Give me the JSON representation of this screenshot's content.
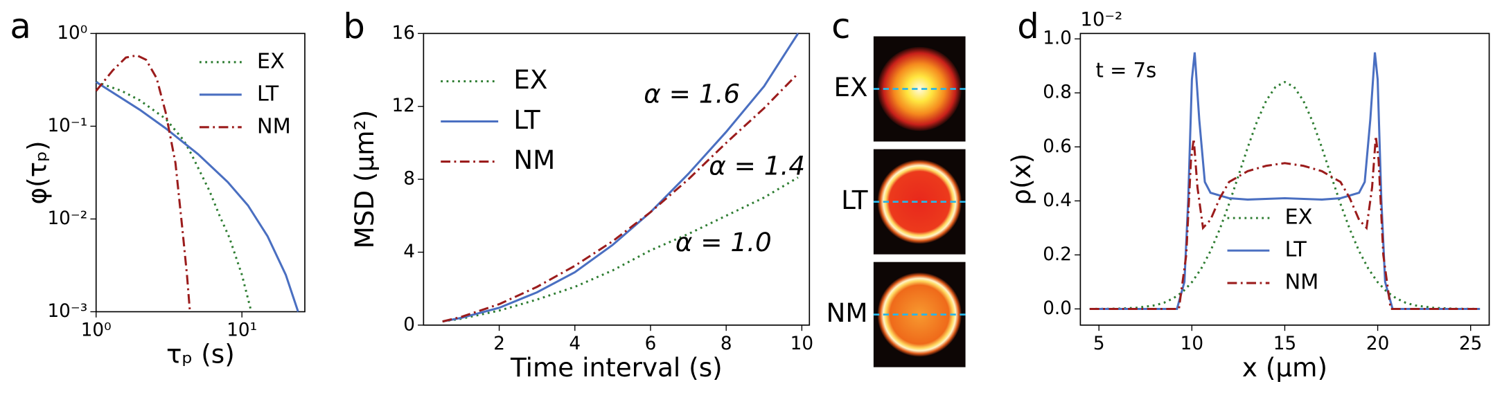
{
  "chart_data": [
    {
      "type": "line",
      "label": "a",
      "xlabel": "τₚ (s)",
      "ylabel": "φ(τₚ)",
      "xlog": true,
      "ylog": true,
      "xlim": [
        1,
        27
      ],
      "ylim": [
        0.001,
        1
      ],
      "xticks": [
        {
          "value": 1,
          "label": "10⁰"
        },
        {
          "value": 10,
          "label": "10¹"
        }
      ],
      "yticks": [
        {
          "value": 0.001,
          "label": "10⁻³"
        },
        {
          "value": 0.01,
          "label": "10⁻²"
        },
        {
          "value": 0.1,
          "label": "10⁻¹"
        },
        {
          "value": 1,
          "label": "10⁰"
        }
      ],
      "legend": "upper right",
      "series": [
        {
          "name": "EX",
          "color": "#2e7d32",
          "dash": "dotted",
          "x": [
            1,
            1.5,
            2,
            3,
            4,
            4.5,
            6,
            7,
            8.2,
            10,
            11.6
          ],
          "values": [
            0.3,
            0.24,
            0.19,
            0.12,
            0.07,
            0.05,
            0.02,
            0.011,
            0.0063,
            0.0025,
            0.001
          ]
        },
        {
          "name": "LT",
          "color": "#4a6fc1",
          "dash": "solid",
          "x": [
            1,
            2,
            3,
            5,
            8,
            11,
            15,
            20,
            24.3
          ],
          "values": [
            0.3,
            0.15,
            0.095,
            0.05,
            0.025,
            0.014,
            0.0065,
            0.0025,
            0.001
          ]
        },
        {
          "name": "NM",
          "color": "#9b1c1c",
          "dash": "dashdot",
          "x": [
            1,
            1.3,
            1.6,
            1.9,
            2.2,
            2.6,
            3,
            3.5,
            3.9,
            4.2,
            4.4
          ],
          "values": [
            0.24,
            0.4,
            0.55,
            0.58,
            0.52,
            0.33,
            0.14,
            0.04,
            0.008,
            0.0025,
            0.001
          ]
        }
      ]
    },
    {
      "type": "line",
      "label": "b",
      "xlabel": "Time interval (s)",
      "ylabel": "MSD (μm²)",
      "xlim": [
        0,
        10.2
      ],
      "ylim": [
        0,
        16
      ],
      "xticks": [
        2,
        4,
        6,
        8,
        10
      ],
      "yticks": [
        0,
        4,
        8,
        12,
        16
      ],
      "legend": "upper left",
      "x": [
        0.5,
        1,
        2,
        3,
        4,
        5,
        6,
        7,
        8,
        9,
        9.9
      ],
      "series": [
        {
          "name": "EX",
          "color": "#2e7d32",
          "dash": "dotted",
          "values": [
            0.2,
            0.35,
            0.8,
            1.4,
            2.1,
            3.0,
            4.1,
            5.0,
            6.0,
            7.0,
            8.1
          ]
        },
        {
          "name": "LT",
          "color": "#4a6fc1",
          "dash": "solid",
          "values": [
            0.2,
            0.4,
            0.95,
            1.8,
            2.9,
            4.4,
            6.2,
            8.3,
            10.6,
            13.1,
            16
          ]
        },
        {
          "name": "NM",
          "color": "#9b1c1c",
          "dash": "dashdot",
          "values": [
            0.2,
            0.45,
            1.15,
            2.1,
            3.25,
            4.6,
            6.2,
            8.0,
            10.0,
            11.9,
            13.8
          ]
        }
      ],
      "annotations": [
        {
          "text": "α = 1.6",
          "color": "#4a6fc1"
        },
        {
          "text": "α = 1.4",
          "color": "#9b1c1c"
        },
        {
          "text": "α = 1.0",
          "color": "#2e7d32"
        }
      ]
    },
    {
      "type": "image",
      "label": "c",
      "categories": [
        "EX",
        "LT",
        "NM"
      ]
    },
    {
      "type": "line",
      "label": "d",
      "xlabel": "x (μm)",
      "ylabel": "ρ(x)",
      "offset_text": "10⁻²",
      "annotation": "t = 7s",
      "xlim": [
        4,
        26
      ],
      "ylim": [
        -0.06,
        1.02
      ],
      "xticks": [
        5,
        10,
        15,
        20,
        25
      ],
      "yticks": [
        {
          "value": 0,
          "label": "0.0"
        },
        0.2,
        0.4,
        0.6,
        0.8,
        {
          "value": 1,
          "label": "1.0"
        }
      ],
      "legend": "lower center",
      "series": [
        {
          "name": "EX",
          "color": "#2e7d32",
          "dash": "dotted",
          "x": [
            4.5,
            6,
            7,
            8,
            8.5,
            9,
            9.5,
            10,
            10.5,
            11,
            11.5,
            12,
            12.5,
            13,
            13.5,
            14,
            14.5,
            15,
            15.5,
            16,
            16.5,
            17,
            17.5,
            18,
            18.5,
            19,
            19.5,
            20,
            20.5,
            21,
            21.5,
            22,
            23,
            24,
            25.5
          ],
          "values": [
            0,
            0.001,
            0.004,
            0.013,
            0.023,
            0.039,
            0.063,
            0.099,
            0.149,
            0.214,
            0.295,
            0.389,
            0.492,
            0.597,
            0.693,
            0.771,
            0.822,
            0.84,
            0.822,
            0.771,
            0.693,
            0.597,
            0.492,
            0.389,
            0.295,
            0.214,
            0.149,
            0.099,
            0.063,
            0.039,
            0.023,
            0.013,
            0.004,
            0.001,
            0
          ]
        },
        {
          "name": "LT",
          "color": "#4a6fc1",
          "dash": "solid",
          "x": [
            4.5,
            9.2,
            9.6,
            9.8,
            10,
            10.15,
            10.4,
            10.7,
            11,
            12,
            13,
            15,
            17,
            18,
            19,
            19.3,
            19.6,
            19.85,
            20,
            20.2,
            20.4,
            20.8,
            25.5
          ],
          "values": [
            0,
            0,
            0.1,
            0.4,
            0.85,
            0.95,
            0.7,
            0.47,
            0.43,
            0.41,
            0.405,
            0.41,
            0.405,
            0.41,
            0.43,
            0.47,
            0.7,
            0.95,
            0.85,
            0.4,
            0.1,
            0,
            0
          ]
        },
        {
          "name": "NM",
          "color": "#9b1c1c",
          "dash": "dashdot",
          "x": [
            4.5,
            9.3,
            9.7,
            9.95,
            10.1,
            10.3,
            10.6,
            11,
            11.5,
            12,
            13,
            14,
            15,
            16,
            17,
            18,
            18.5,
            19,
            19.4,
            19.7,
            19.9,
            20.05,
            20.3,
            20.7,
            25.5
          ],
          "values": [
            0,
            0,
            0.2,
            0.55,
            0.63,
            0.45,
            0.3,
            0.33,
            0.41,
            0.47,
            0.51,
            0.53,
            0.54,
            0.53,
            0.51,
            0.47,
            0.41,
            0.33,
            0.3,
            0.45,
            0.64,
            0.55,
            0.2,
            0,
            0
          ]
        }
      ]
    }
  ]
}
